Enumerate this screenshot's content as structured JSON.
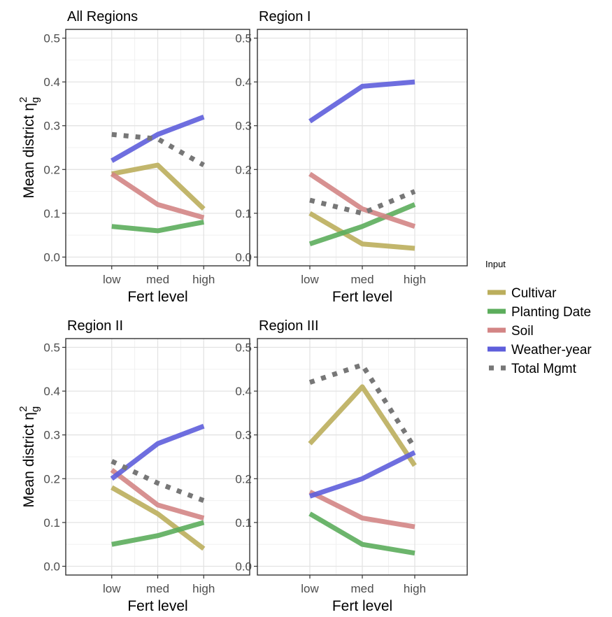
{
  "legend": {
    "title": "Input",
    "entries": [
      {
        "name": "Cultivar",
        "color": "#BBAE5C",
        "dashed": false
      },
      {
        "name": "Planting Date",
        "color": "#5CAD5C",
        "dashed": false
      },
      {
        "name": "Soil",
        "color": "#D38585",
        "dashed": false
      },
      {
        "name": "Weather-year",
        "color": "#5E5EDB",
        "dashed": false
      },
      {
        "name": "Total Mgmt",
        "color": "#777777",
        "dashed": true
      }
    ]
  },
  "chart_data": [
    {
      "type": "line",
      "title": "All Regions",
      "xlabel": "Fert level",
      "ylabel": "Mean district η_g^2",
      "categories": [
        "low",
        "med",
        "high"
      ],
      "ylim": [
        0,
        0.5
      ],
      "yticks": [
        "0.0",
        "0.1",
        "0.2",
        "0.3",
        "0.4",
        "0.5"
      ],
      "series": [
        {
          "name": "Cultivar",
          "values": [
            0.19,
            0.21,
            0.11
          ]
        },
        {
          "name": "Planting Date",
          "values": [
            0.07,
            0.06,
            0.08
          ]
        },
        {
          "name": "Soil",
          "values": [
            0.19,
            0.12,
            0.09
          ]
        },
        {
          "name": "Weather-year",
          "values": [
            0.22,
            0.28,
            0.32
          ]
        },
        {
          "name": "Total Mgmt",
          "values": [
            0.28,
            0.27,
            0.21
          ]
        }
      ]
    },
    {
      "type": "line",
      "title": "Region I",
      "xlabel": "Fert level",
      "ylabel": "",
      "categories": [
        "low",
        "med",
        "high"
      ],
      "ylim": [
        0,
        0.5
      ],
      "yticks": [
        "0.0",
        "0.1",
        "0.2",
        "0.3",
        "0.4",
        "0.5"
      ],
      "series": [
        {
          "name": "Cultivar",
          "values": [
            0.1,
            0.03,
            0.02
          ]
        },
        {
          "name": "Planting Date",
          "values": [
            0.03,
            0.07,
            0.12
          ]
        },
        {
          "name": "Soil",
          "values": [
            0.19,
            0.11,
            0.07
          ]
        },
        {
          "name": "Weather-year",
          "values": [
            0.31,
            0.39,
            0.4
          ]
        },
        {
          "name": "Total Mgmt",
          "values": [
            0.13,
            0.1,
            0.15
          ]
        }
      ]
    },
    {
      "type": "line",
      "title": "Region II",
      "xlabel": "Fert level",
      "ylabel": "Mean district η_g^2",
      "categories": [
        "low",
        "med",
        "high"
      ],
      "ylim": [
        0,
        0.5
      ],
      "yticks": [
        "0.0",
        "0.1",
        "0.2",
        "0.3",
        "0.4",
        "0.5"
      ],
      "series": [
        {
          "name": "Cultivar",
          "values": [
            0.18,
            0.12,
            0.04
          ]
        },
        {
          "name": "Planting Date",
          "values": [
            0.05,
            0.07,
            0.1
          ]
        },
        {
          "name": "Soil",
          "values": [
            0.22,
            0.14,
            0.11
          ]
        },
        {
          "name": "Weather-year",
          "values": [
            0.2,
            0.28,
            0.32
          ]
        },
        {
          "name": "Total Mgmt",
          "values": [
            0.24,
            0.19,
            0.15
          ]
        }
      ]
    },
    {
      "type": "line",
      "title": "Region III",
      "xlabel": "Fert level",
      "ylabel": "",
      "categories": [
        "low",
        "med",
        "high"
      ],
      "ylim": [
        0,
        0.5
      ],
      "yticks": [
        "0.0",
        "0.1",
        "0.2",
        "0.3",
        "0.4",
        "0.5"
      ],
      "series": [
        {
          "name": "Cultivar",
          "values": [
            0.28,
            0.41,
            0.23
          ]
        },
        {
          "name": "Planting Date",
          "values": [
            0.12,
            0.05,
            0.03
          ]
        },
        {
          "name": "Soil",
          "values": [
            0.17,
            0.11,
            0.09
          ]
        },
        {
          "name": "Weather-year",
          "values": [
            0.16,
            0.2,
            0.26
          ]
        },
        {
          "name": "Total Mgmt",
          "values": [
            0.42,
            0.46,
            0.27
          ]
        }
      ]
    }
  ]
}
